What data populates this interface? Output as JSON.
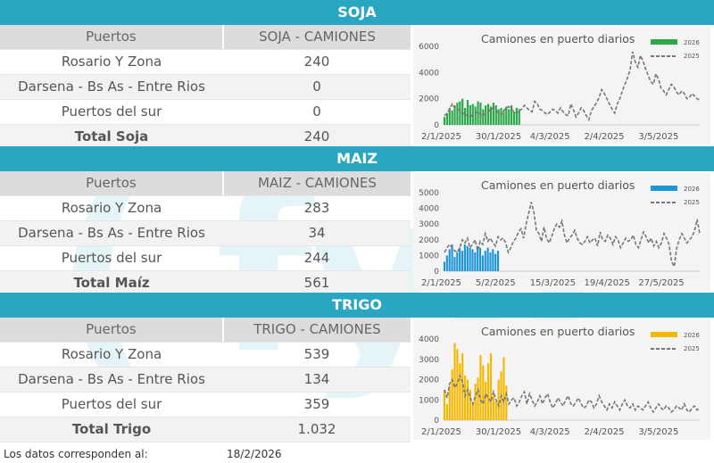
{
  "watermark": "( fyo",
  "sections": [
    {
      "key": "soja",
      "title": "SOJA",
      "col1": "Puertos",
      "col2": "SOJA - CAMIONES",
      "rows": [
        {
          "name": "Rosario Y Zona",
          "value": "240"
        },
        {
          "name": "Darsena - Bs As - Entre Rios",
          "value": "0"
        },
        {
          "name": "Puertos del sur",
          "value": "0"
        }
      ],
      "total": {
        "name": "Total Soja",
        "value": "240"
      }
    },
    {
      "key": "maiz",
      "title": "MAIZ",
      "col1": "Puertos",
      "col2": "MAIZ - CAMIONES",
      "rows": [
        {
          "name": "Rosario Y Zona",
          "value": "283"
        },
        {
          "name": "Darsena - Bs As - Entre Rios",
          "value": "34"
        },
        {
          "name": "Puertos del sur",
          "value": "244"
        }
      ],
      "total": {
        "name": "Total Maíz",
        "value": "561"
      }
    },
    {
      "key": "trigo",
      "title": "TRIGO",
      "col1": "Puertos",
      "col2": "TRIGO - CAMIONES",
      "rows": [
        {
          "name": "Rosario Y Zona",
          "value": "539"
        },
        {
          "name": "Darsena - Bs As - Entre Rios",
          "value": "134"
        },
        {
          "name": "Puertos del sur",
          "value": "359"
        }
      ],
      "total": {
        "name": "Total Trigo",
        "value": "1.032"
      }
    }
  ],
  "footer": {
    "label": "Los datos corresponden al:",
    "date": "18/2/2026"
  },
  "chart_data": [
    {
      "type": "bar",
      "title": "Camiones en puerto diarios",
      "ylim": [
        0,
        6000
      ],
      "yticks": [
        "0",
        "2000",
        "4000",
        "6000"
      ],
      "xticks": [
        "2/1/2025",
        "30/1/2025",
        "4/3/2025",
        "2/4/2025",
        "3/5/2025"
      ],
      "legend": "top-right",
      "color_2026": "#2ca84a",
      "series": [
        {
          "name": "2026",
          "kind": "bar",
          "values": [
            600,
            900,
            1300,
            1100,
            1500,
            1700,
            1800,
            2000,
            1300,
            1900,
            1500,
            1600,
            1400,
            1800,
            1700,
            1200,
            1500,
            1600,
            1400,
            1700,
            1500,
            1200,
            1300,
            1100,
            1400,
            1200,
            1500,
            1000,
            1300,
            1200
          ]
        },
        {
          "name": "2025",
          "kind": "dashed-line",
          "values": [
            700,
            900,
            1200,
            1600,
            1300,
            1200,
            1100,
            900,
            800,
            700,
            600,
            800,
            900,
            1000,
            800,
            700,
            900,
            1000,
            1200,
            1300,
            1100,
            900,
            800,
            1100,
            1300,
            1400,
            1200,
            1000,
            900,
            1100,
            1200,
            1500,
            1300,
            1100,
            1000,
            1800,
            1600,
            1200,
            1100,
            900,
            800,
            1000,
            1200,
            1100,
            900,
            1300,
            1000,
            800,
            700,
            1600,
            1200,
            600,
            900,
            1300,
            1100,
            700,
            400,
            1100,
            1400,
            1700,
            2100,
            2700,
            2400,
            2000,
            1600,
            1200,
            900,
            1600,
            2000,
            2600,
            3100,
            3600,
            4200,
            5600,
            4800,
            4400,
            5300,
            4900,
            4300,
            3800,
            3300,
            3100,
            3900,
            3500,
            2800,
            2600,
            2300,
            2700,
            3100,
            2900,
            2500,
            2300,
            2600,
            2400,
            2000,
            2100,
            2400,
            2200,
            2000,
            1900
          ]
        }
      ]
    },
    {
      "type": "bar",
      "title": "Camiones en puerto diarios",
      "ylim": [
        0,
        5000
      ],
      "yticks": [
        "0",
        "1000",
        "2000",
        "3000",
        "4000",
        "5000"
      ],
      "xticks": [
        "2/1/2025",
        "5/2/2025",
        "15/3/2025",
        "19/4/2025",
        "27/5/2025"
      ],
      "legend": "top-right",
      "color_2026": "#1e95d8",
      "series": [
        {
          "name": "2026",
          "kind": "bar",
          "values": [
            600,
            1000,
            1400,
            1700,
            900,
            1200,
            1500,
            1300,
            1700,
            1600,
            1500,
            1400,
            1200,
            1600,
            1500,
            1000,
            1300,
            1500,
            1200,
            1400,
            1100,
            1300
          ]
        },
        {
          "name": "2025",
          "kind": "dashed-line",
          "values": [
            1200,
            1500,
            1700,
            1500,
            1300,
            1200,
            1500,
            2000,
            1800,
            2100,
            1500,
            1700,
            2000,
            1300,
            1900,
            1700,
            2400,
            1900,
            2100,
            1800,
            1600,
            2200,
            2000,
            2100,
            1800,
            1200,
            1500,
            1900,
            2100,
            2500,
            2700,
            2100,
            3000,
            3700,
            4400,
            3800,
            2600,
            2400,
            1900,
            2800,
            2100,
            1800,
            2200,
            2700,
            3000,
            2800,
            3200,
            2300,
            1800,
            2100,
            2300,
            2600,
            2100,
            1800,
            1700,
            1900,
            2200,
            1800,
            2000,
            2100,
            1600,
            2500,
            2000,
            1900,
            2300,
            2100,
            1700,
            2200,
            2000,
            1500,
            1800,
            2100,
            1900,
            2000,
            2300,
            1700,
            1500,
            2000,
            2500,
            2200,
            1800,
            2100,
            1600,
            1900,
            1500,
            1800,
            2400,
            2100,
            1700,
            600,
            300,
            1500,
            2000,
            2400,
            2100,
            1800,
            2000,
            2200,
            2600,
            3300,
            2400
          ]
        }
      ]
    },
    {
      "type": "bar",
      "title": "Camiones en puerto diarios",
      "ylim": [
        0,
        4000
      ],
      "yticks": [
        "0",
        "1000",
        "2000",
        "3000",
        "4000"
      ],
      "xticks": [
        "2/1/2025",
        "30/1/2025",
        "4/3/2025",
        "2/4/2025",
        "3/5/2025"
      ],
      "legend": "top-right",
      "color_2026": "#f5b800",
      "series": [
        {
          "name": "2026",
          "kind": "bar",
          "values": [
            1500,
            800,
            1700,
            2500,
            3800,
            3500,
            2800,
            3300,
            2200,
            2000,
            1500,
            900,
            1800,
            2100,
            3200,
            2700,
            1900,
            2800,
            3300,
            1200,
            900,
            2000,
            2400,
            3100,
            1700
          ]
        },
        {
          "name": "2025",
          "kind": "dashed-line",
          "values": [
            1500,
            1100,
            1800,
            2000,
            1600,
            1800,
            2200,
            1900,
            1200,
            1500,
            1100,
            800,
            1200,
            1500,
            1000,
            800,
            1300,
            1100,
            900,
            1400,
            1000,
            700,
            1200,
            900,
            1300,
            800,
            1000,
            1100,
            700,
            900,
            1200,
            1400,
            800,
            1300,
            1000,
            700,
            900,
            1200,
            800,
            1100,
            1300,
            900,
            600,
            800,
            1100,
            900,
            700,
            1000,
            1200,
            800,
            700,
            900,
            1100,
            800,
            600,
            700,
            1000,
            900,
            600,
            800,
            1200,
            900,
            700,
            500,
            800,
            600,
            900,
            700,
            500,
            800,
            1000,
            700,
            600,
            800,
            500,
            700,
            600,
            500,
            700,
            900,
            600,
            400,
            600,
            800,
            600,
            500,
            700,
            600,
            400,
            500,
            700,
            600,
            500,
            800,
            500,
            400,
            600,
            700,
            500,
            600
          ]
        }
      ]
    }
  ]
}
